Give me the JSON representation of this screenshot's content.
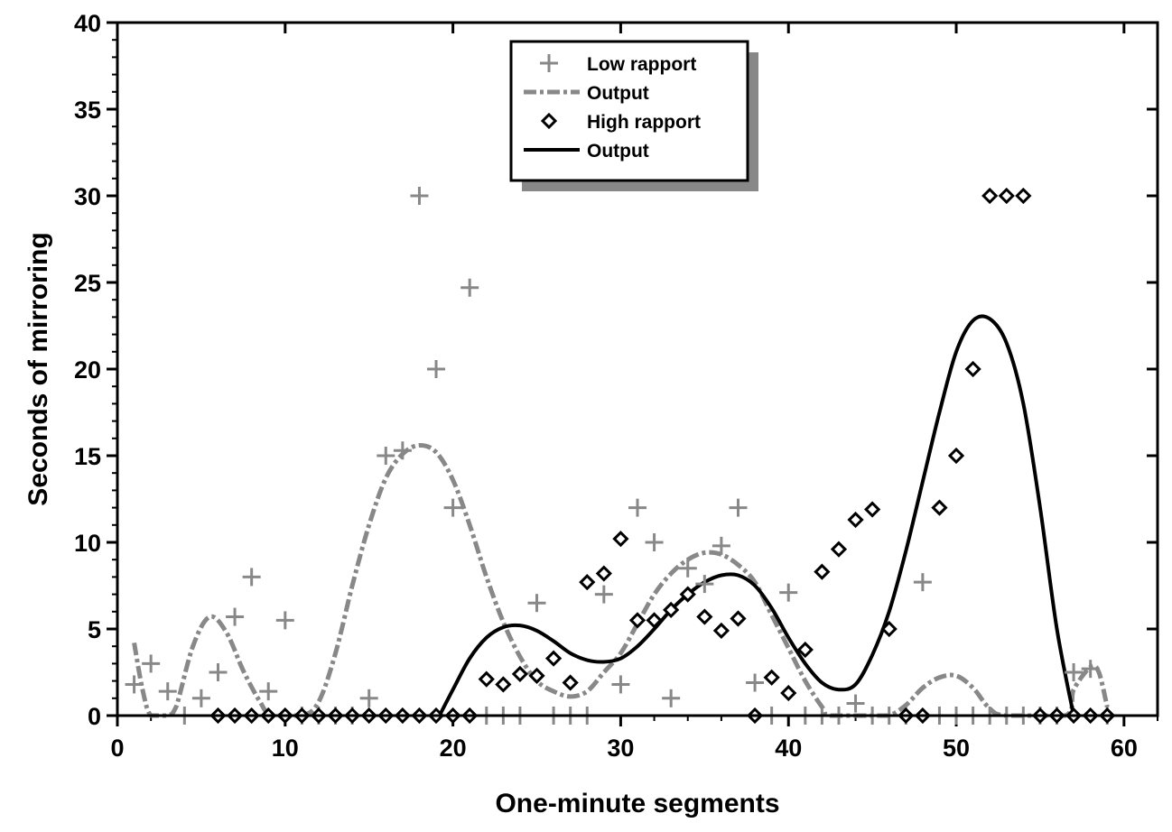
{
  "chart_data": {
    "type": "scatter",
    "title": "",
    "xlabel": "One-minute segments",
    "ylabel": "Seconds of mirroring",
    "xlim": [
      0,
      62
    ],
    "ylim": [
      0,
      40
    ],
    "xticks": [
      0,
      10,
      20,
      30,
      40,
      50,
      60
    ],
    "yticks": [
      0,
      5,
      10,
      15,
      20,
      25,
      30,
      35,
      40
    ],
    "legend_position": "top-center",
    "series": [
      {
        "name": "Low rapport",
        "kind": "scatter",
        "marker": "plus",
        "color": "#888888",
        "points": [
          [
            1,
            1.8
          ],
          [
            2,
            3
          ],
          [
            3,
            1.4
          ],
          [
            4,
            0
          ],
          [
            5,
            1
          ],
          [
            6,
            2.5
          ],
          [
            7,
            5.7
          ],
          [
            8,
            8
          ],
          [
            9,
            1.4
          ],
          [
            10,
            5.5
          ],
          [
            11,
            0
          ],
          [
            12,
            0
          ],
          [
            13,
            0
          ],
          [
            14,
            0
          ],
          [
            15,
            1
          ],
          [
            16,
            15
          ],
          [
            17,
            15.3
          ],
          [
            18,
            30
          ],
          [
            19,
            20
          ],
          [
            20,
            12
          ],
          [
            21,
            24.7
          ],
          [
            22,
            0
          ],
          [
            23,
            0
          ],
          [
            24,
            0
          ],
          [
            25,
            6.5
          ],
          [
            26,
            0
          ],
          [
            27,
            0
          ],
          [
            28,
            0
          ],
          [
            29,
            7
          ],
          [
            30,
            1.8
          ],
          [
            31,
            12
          ],
          [
            32,
            10
          ],
          [
            33,
            1
          ],
          [
            34,
            8.5
          ],
          [
            35,
            7.6
          ],
          [
            36,
            9.8
          ],
          [
            37,
            12
          ],
          [
            38,
            1.9
          ],
          [
            39,
            0
          ],
          [
            40,
            7.1
          ],
          [
            41,
            0
          ],
          [
            42,
            0
          ],
          [
            43,
            0
          ],
          [
            44,
            0.7
          ],
          [
            45,
            0
          ],
          [
            46,
            0
          ],
          [
            47,
            0
          ],
          [
            48,
            7.7
          ],
          [
            49,
            0
          ],
          [
            50,
            0
          ],
          [
            51,
            0
          ],
          [
            52,
            0
          ],
          [
            53,
            0
          ],
          [
            54,
            0
          ],
          [
            55,
            0
          ],
          [
            56,
            0
          ],
          [
            57,
            2.5
          ],
          [
            58,
            2.7
          ],
          [
            59,
            0
          ]
        ]
      },
      {
        "name": "Output",
        "kind": "line",
        "style": "dash-dot",
        "color": "#888888",
        "points": [
          [
            1,
            4.2
          ],
          [
            1.5,
            1.5
          ],
          [
            2,
            0
          ],
          [
            3,
            0
          ],
          [
            3.5,
            0.5
          ],
          [
            4.5,
            4
          ],
          [
            5.5,
            5.7
          ],
          [
            6.5,
            4.8
          ],
          [
            7.5,
            2.6
          ],
          [
            8.5,
            0.8
          ],
          [
            9.2,
            0
          ],
          [
            11,
            0
          ],
          [
            12,
            0.8
          ],
          [
            13,
            3.6
          ],
          [
            14,
            7.5
          ],
          [
            15,
            11
          ],
          [
            16,
            13.7
          ],
          [
            17,
            15.1
          ],
          [
            18,
            15.6
          ],
          [
            19,
            15.2
          ],
          [
            20,
            13.6
          ],
          [
            21,
            11
          ],
          [
            22,
            8
          ],
          [
            23,
            5.4
          ],
          [
            24,
            3.4
          ],
          [
            25,
            2
          ],
          [
            26,
            1.4
          ],
          [
            27,
            1.1
          ],
          [
            28,
            1.4
          ],
          [
            29,
            2.5
          ],
          [
            30,
            3.6
          ],
          [
            31,
            5.3
          ],
          [
            32,
            7
          ],
          [
            33,
            8.2
          ],
          [
            34,
            9
          ],
          [
            35,
            9.4
          ],
          [
            36,
            9.3
          ],
          [
            37,
            8.7
          ],
          [
            38,
            7.7
          ],
          [
            39,
            5.8
          ],
          [
            40,
            3.9
          ],
          [
            41,
            2
          ],
          [
            42,
            0.5
          ],
          [
            42.5,
            0
          ],
          [
            45,
            0
          ],
          [
            46,
            0
          ],
          [
            47,
            0.6
          ],
          [
            48,
            1.6
          ],
          [
            49,
            2.2
          ],
          [
            50,
            2.3
          ],
          [
            51,
            1.6
          ],
          [
            52,
            0.4
          ],
          [
            53,
            0
          ],
          [
            56.5,
            0
          ],
          [
            57,
            1.5
          ],
          [
            58,
            2.8
          ],
          [
            58.5,
            2.5
          ],
          [
            59,
            0.5
          ]
        ]
      },
      {
        "name": "High rapport",
        "kind": "scatter",
        "marker": "diamond",
        "color": "#000000",
        "points": [
          [
            6,
            0
          ],
          [
            7,
            0
          ],
          [
            8,
            0
          ],
          [
            9,
            0
          ],
          [
            10,
            0
          ],
          [
            11,
            0
          ],
          [
            12,
            0
          ],
          [
            13,
            0
          ],
          [
            14,
            0
          ],
          [
            15,
            0
          ],
          [
            16,
            0
          ],
          [
            17,
            0
          ],
          [
            18,
            0
          ],
          [
            19,
            0
          ],
          [
            20,
            0
          ],
          [
            21,
            0
          ],
          [
            22,
            2.1
          ],
          [
            23,
            1.8
          ],
          [
            24,
            2.4
          ],
          [
            25,
            2.3
          ],
          [
            26,
            3.3
          ],
          [
            27,
            1.9
          ],
          [
            28,
            7.7
          ],
          [
            29,
            8.2
          ],
          [
            30,
            10.2
          ],
          [
            31,
            5.5
          ],
          [
            32,
            5.5
          ],
          [
            33,
            6.1
          ],
          [
            34,
            7
          ],
          [
            35,
            5.7
          ],
          [
            36,
            4.9
          ],
          [
            37,
            5.6
          ],
          [
            38,
            0
          ],
          [
            39,
            2.2
          ],
          [
            40,
            1.3
          ],
          [
            41,
            3.8
          ],
          [
            42,
            8.3
          ],
          [
            43,
            9.6
          ],
          [
            44,
            11.3
          ],
          [
            45,
            11.9
          ],
          [
            46,
            5
          ],
          [
            47,
            0
          ],
          [
            48,
            0
          ],
          [
            49,
            12
          ],
          [
            50,
            15
          ],
          [
            51,
            20
          ],
          [
            52,
            30
          ],
          [
            53,
            30
          ],
          [
            54,
            30
          ],
          [
            55,
            0
          ],
          [
            56,
            0
          ],
          [
            57,
            0
          ],
          [
            58,
            0
          ],
          [
            59,
            0
          ]
        ]
      },
      {
        "name": "Output",
        "kind": "line",
        "style": "solid",
        "color": "#000000",
        "points": [
          [
            19.2,
            0
          ],
          [
            20,
            1.5
          ],
          [
            21,
            3.3
          ],
          [
            22,
            4.5
          ],
          [
            23,
            5.1
          ],
          [
            24,
            5.2
          ],
          [
            25,
            4.9
          ],
          [
            26,
            4.3
          ],
          [
            27,
            3.6
          ],
          [
            28,
            3.2
          ],
          [
            29,
            3.1
          ],
          [
            30,
            3.3
          ],
          [
            31,
            4
          ],
          [
            32,
            5
          ],
          [
            33,
            6.1
          ],
          [
            34,
            7
          ],
          [
            35,
            7.7
          ],
          [
            36,
            8.1
          ],
          [
            37,
            8.1
          ],
          [
            38,
            7.5
          ],
          [
            39,
            6.2
          ],
          [
            40,
            4.5
          ],
          [
            41,
            3
          ],
          [
            42,
            1.9
          ],
          [
            43,
            1.5
          ],
          [
            44,
            1.8
          ],
          [
            45,
            3.5
          ],
          [
            46,
            6
          ],
          [
            47,
            9.5
          ],
          [
            48,
            13.5
          ],
          [
            49,
            17.5
          ],
          [
            50,
            21
          ],
          [
            51,
            22.8
          ],
          [
            52,
            22.9
          ],
          [
            53,
            21.5
          ],
          [
            54,
            18
          ],
          [
            55,
            12
          ],
          [
            56,
            5
          ],
          [
            57,
            0
          ]
        ]
      }
    ]
  }
}
